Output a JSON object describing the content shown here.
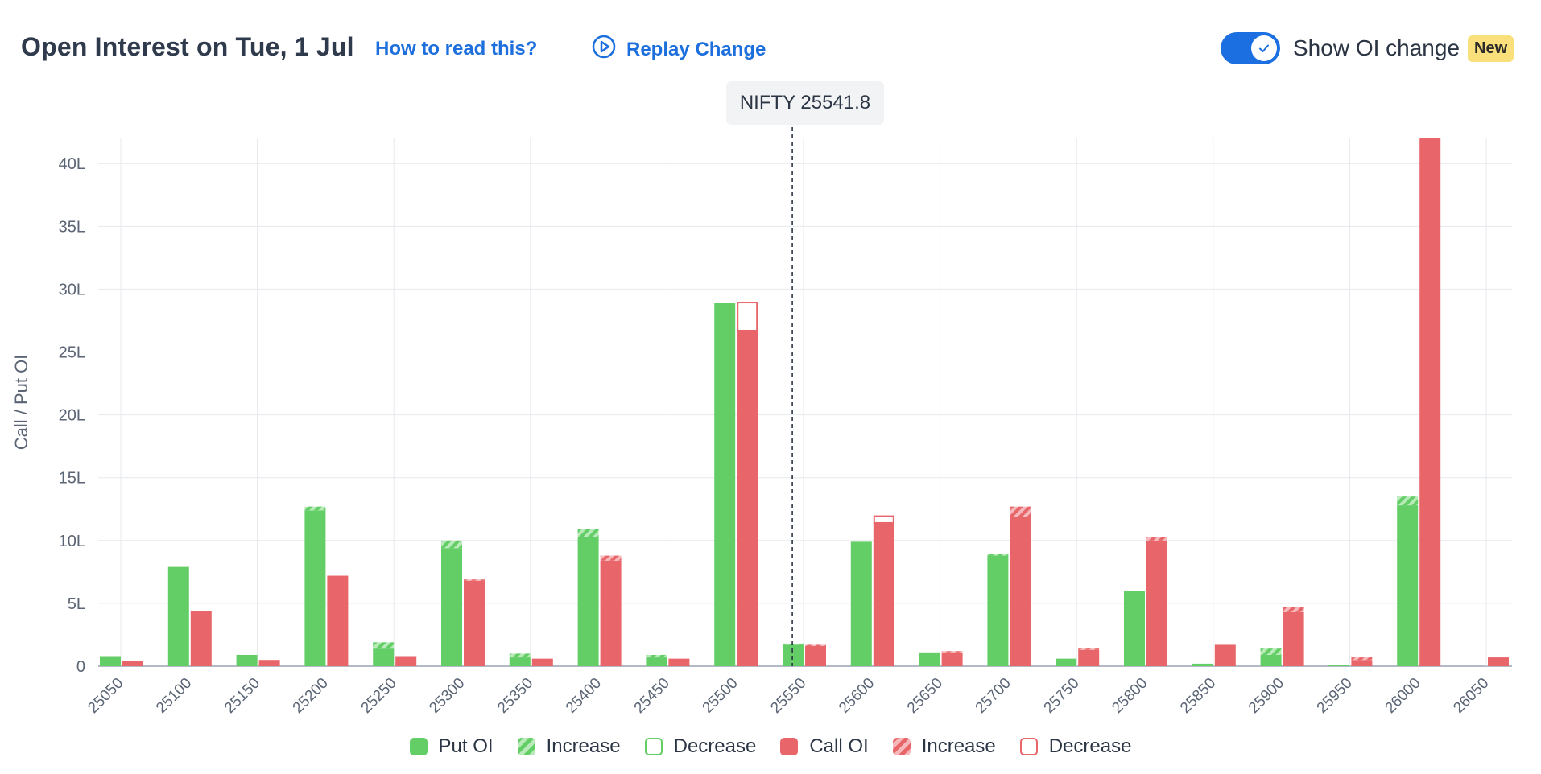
{
  "header": {
    "title": "Open Interest on Tue, 1 Jul",
    "how_link": "How to read this?",
    "replay_label": "Replay Change",
    "toggle_label": "Show OI change",
    "toggle_on": true,
    "new_badge": "New"
  },
  "spot": {
    "label": "NIFTY 25541.8",
    "value": 25541.8
  },
  "legend": {
    "put_oi": "Put OI",
    "put_increase": "Increase",
    "put_decrease": "Decrease",
    "call_oi": "Call OI",
    "call_increase": "Increase",
    "call_decrease": "Decrease"
  },
  "colors": {
    "put": "#63ce66",
    "put_light": "#b9eab9",
    "call": "#e8666a",
    "call_light": "#f6b8ba",
    "accent": "#1b6fe0",
    "badge": "#fae07a"
  },
  "chart_data": {
    "type": "bar",
    "ylabel": "Call / Put OI",
    "ylim": [
      0,
      42
    ],
    "yticks": [
      0,
      5,
      10,
      15,
      20,
      25,
      30,
      35,
      40
    ],
    "ytick_labels": [
      "0",
      "5L",
      "10L",
      "15L",
      "20L",
      "25L",
      "30L",
      "35L",
      "40L"
    ],
    "unit": "L",
    "categories": [
      "25050",
      "25100",
      "25150",
      "25200",
      "25250",
      "25300",
      "25350",
      "25400",
      "25450",
      "25500",
      "25550",
      "25600",
      "25650",
      "25700",
      "25750",
      "25800",
      "25850",
      "25900",
      "25950",
      "26000",
      "26050"
    ],
    "series": [
      {
        "name": "Put OI",
        "values": [
          0.8,
          7.9,
          0.9,
          12.7,
          1.9,
          10.0,
          1.0,
          10.9,
          0.9,
          28.9,
          1.8,
          9.9,
          1.1,
          8.9,
          0.6,
          6.0,
          0.2,
          1.4,
          0.1,
          13.5,
          0.0
        ],
        "increase": [
          0.0,
          0.0,
          0.0,
          0.3,
          0.5,
          0.6,
          0.3,
          0.6,
          0.2,
          0.0,
          0.1,
          0.0,
          0.0,
          0.1,
          0.0,
          0.0,
          0.0,
          0.5,
          0.0,
          0.7,
          0.0
        ],
        "decrease": [
          0,
          0,
          0,
          0,
          0,
          0,
          0,
          0,
          0,
          0,
          0,
          0,
          0,
          0,
          0,
          0,
          0,
          0,
          0,
          0,
          0
        ]
      },
      {
        "name": "Call OI",
        "values": [
          0.4,
          4.4,
          0.5,
          7.2,
          0.8,
          6.9,
          0.6,
          8.8,
          0.6,
          26.7,
          1.7,
          11.4,
          1.2,
          12.7,
          1.4,
          10.3,
          1.7,
          4.7,
          0.7,
          42.0,
          0.7
        ],
        "increase": [
          0.0,
          0.0,
          0.0,
          0.0,
          0.0,
          0.1,
          0.0,
          0.4,
          0.0,
          0.0,
          0.1,
          0.0,
          0.1,
          0.8,
          0.1,
          0.3,
          0.0,
          0.4,
          0.2,
          0.0,
          0.0
        ],
        "decrease": [
          0,
          0,
          0,
          0,
          0,
          0,
          0,
          0,
          0,
          2.3,
          0,
          0.6,
          0,
          0,
          0,
          0,
          0,
          0,
          0,
          0,
          0
        ]
      }
    ],
    "spot_value": 25541.8,
    "grid": true
  }
}
